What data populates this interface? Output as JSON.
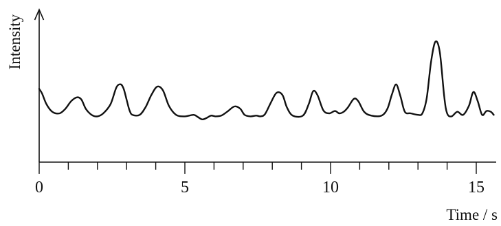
{
  "chart_data": {
    "type": "line",
    "title": "",
    "xlabel": "Time / s",
    "ylabel": "Intensity",
    "xlim": [
      0,
      15.6
    ],
    "xticks_major": [
      0,
      5,
      10,
      15
    ],
    "xticks_minor": [
      1,
      2,
      3,
      4,
      6,
      7,
      8,
      9,
      11,
      12,
      13,
      14
    ],
    "tick_labels": [
      "0",
      "5",
      "10",
      "15"
    ],
    "y_scale": "arbitrary (no tick values shown)",
    "ylim": [
      0,
      1
    ],
    "grid": false,
    "legend": "none",
    "series": [
      {
        "x": [
          0.0,
          0.1,
          0.25,
          0.45,
          0.7,
          0.9,
          1.1,
          1.3,
          1.45,
          1.6,
          1.8,
          2.0,
          2.2,
          2.45,
          2.65,
          2.8,
          2.9,
          3.0,
          3.1,
          3.2,
          3.45,
          3.65,
          3.85,
          4.05,
          4.25,
          4.45,
          4.7,
          5.0,
          5.3,
          5.45,
          5.6,
          5.75,
          5.9,
          6.05,
          6.25,
          6.45,
          6.7,
          6.9,
          7.05,
          7.25,
          7.45,
          7.6,
          7.75,
          7.95,
          8.15,
          8.35,
          8.5,
          8.7,
          9.05,
          9.25,
          9.4,
          9.55,
          9.75,
          9.95,
          10.15,
          10.3,
          10.45,
          10.6,
          10.8,
          10.95,
          11.15,
          11.4,
          11.75,
          11.95,
          12.1,
          12.25,
          12.4,
          12.55,
          12.75,
          13.0,
          13.15,
          13.3,
          13.45,
          13.6,
          13.75,
          13.9,
          14.0,
          14.15,
          14.35,
          14.55,
          14.75,
          14.9,
          15.05,
          15.2,
          15.35,
          15.5,
          15.6
        ],
        "y": [
          0.48,
          0.45,
          0.38,
          0.33,
          0.32,
          0.35,
          0.4,
          0.425,
          0.41,
          0.35,
          0.31,
          0.3,
          0.32,
          0.38,
          0.49,
          0.51,
          0.48,
          0.41,
          0.34,
          0.31,
          0.31,
          0.36,
          0.44,
          0.495,
          0.47,
          0.37,
          0.31,
          0.3,
          0.31,
          0.295,
          0.28,
          0.29,
          0.305,
          0.3,
          0.305,
          0.33,
          0.365,
          0.35,
          0.31,
          0.3,
          0.305,
          0.3,
          0.315,
          0.39,
          0.455,
          0.44,
          0.36,
          0.305,
          0.305,
          0.38,
          0.465,
          0.44,
          0.34,
          0.32,
          0.335,
          0.32,
          0.33,
          0.36,
          0.415,
          0.4,
          0.33,
          0.305,
          0.305,
          0.35,
          0.44,
          0.51,
          0.43,
          0.33,
          0.32,
          0.31,
          0.32,
          0.42,
          0.66,
          0.79,
          0.72,
          0.43,
          0.32,
          0.3,
          0.33,
          0.31,
          0.37,
          0.46,
          0.4,
          0.31,
          0.335,
          0.33,
          0.31
        ]
      }
    ]
  }
}
